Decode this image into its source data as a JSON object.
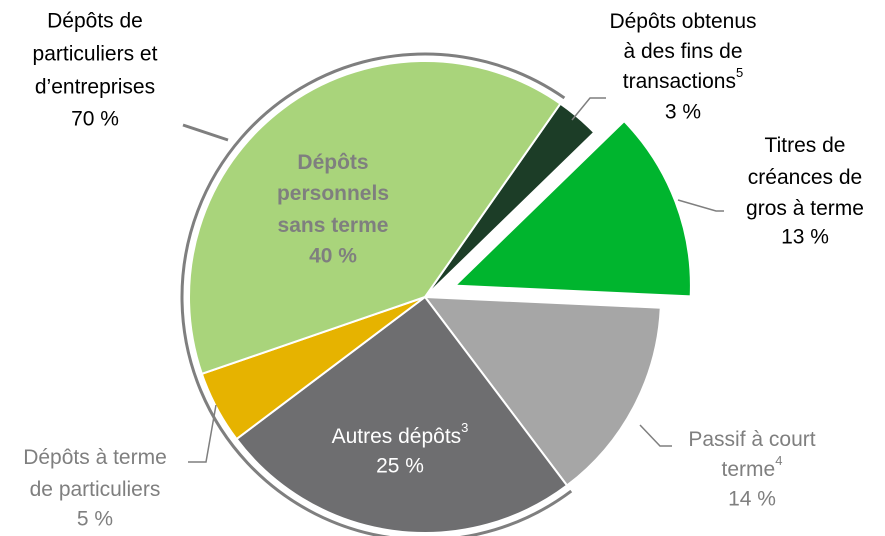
{
  "chart_data": {
    "type": "pie",
    "categories": [
      [
        "Dépôts obtenus",
        "à des fins de",
        "transactions"
      ],
      [
        "Titres de",
        "créances de",
        "gros à terme"
      ],
      [
        "Passif à court",
        "terme"
      ],
      [
        "Autres dépôts"
      ],
      [
        "Dépôts à terme",
        "de particuliers"
      ],
      [
        "Dépôts",
        "personnels",
        "sans terme"
      ]
    ],
    "notes": [
      "5",
      null,
      "4",
      "3",
      null,
      null
    ],
    "values": [
      3,
      13,
      14,
      25,
      5,
      40
    ],
    "value_labels": [
      "3 %",
      "13 %",
      "14 %",
      "25 %",
      "5 %",
      "40 %"
    ],
    "colors": [
      "#1c3d27",
      "#00b52e",
      "#a6a6a6",
      "#6e6e70",
      "#e6b300",
      "#a9d47b"
    ],
    "exploded": [
      false,
      true,
      false,
      false,
      false,
      false
    ],
    "group": {
      "label": [
        "Dépôts de",
        "particuliers et",
        "d’entreprises"
      ],
      "value": 70,
      "value_label": "70 %"
    }
  }
}
